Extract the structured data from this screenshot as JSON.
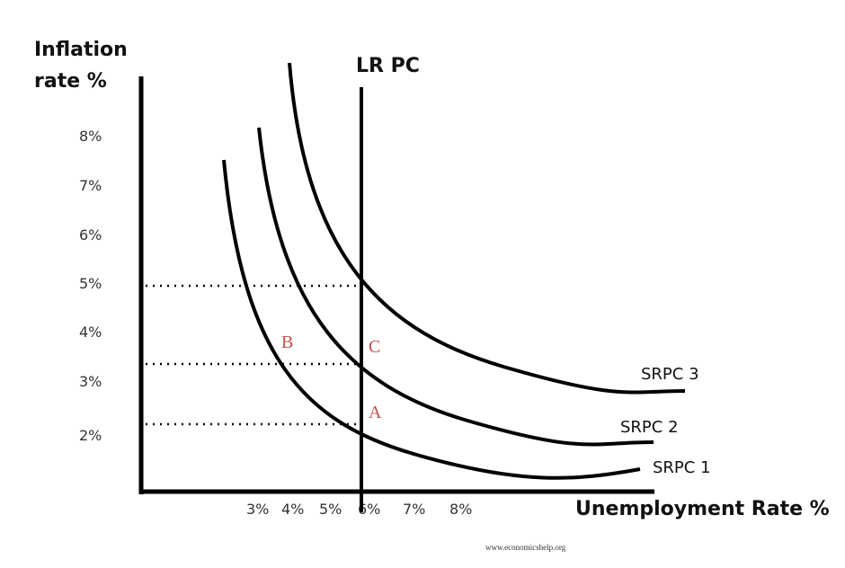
{
  "y_axis": {
    "label_lines": [
      "Inflation",
      "rate %"
    ],
    "ticks": [
      "8%",
      "7%",
      "6%",
      "5%",
      "4%",
      "3%",
      "2%"
    ]
  },
  "x_axis": {
    "label": "Unemployment Rate %",
    "ticks": [
      "3%",
      "4%",
      "5%",
      "6%",
      "7%",
      "8%"
    ]
  },
  "long_run_curve": "LR PC",
  "short_run_curves": [
    "SRPC 1",
    "SRPC 2",
    "SRPC 3"
  ],
  "points": {
    "A": "A",
    "B": "B",
    "C": "C"
  },
  "source": "www.economicshelp.org"
}
